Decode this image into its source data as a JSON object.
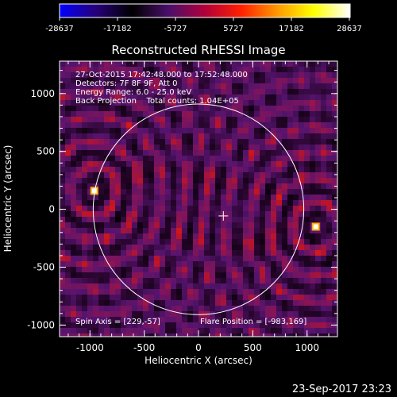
{
  "colorbar": {
    "ticks": [
      "-28637",
      "-17182",
      "-5727",
      "5727",
      "17182",
      "28637"
    ],
    "colormap": [
      "#0000ff",
      "#26007a",
      "#000000",
      "#4a0f6a",
      "#b0003a",
      "#ff2000",
      "#ff9900",
      "#ffff00",
      "#ffffff"
    ]
  },
  "title": "Reconstructed RHESSI Image",
  "info_lines": [
    "27-Oct-2015 17:42:48.000 to 17:52:48.000",
    "Detectors: 7F 8F 9F, Att 0",
    "Energy Range: 6.0 - 25.0 keV",
    "Back Projection    Total counts: 1.04E+05"
  ],
  "spin_axis": "Spin Axis = [229,-57]",
  "flare_position": "Flare Position = [-983,169]",
  "timestamp": "23-Sep-2017 23:23",
  "chart_data": {
    "type": "heatmap",
    "title": "Reconstructed RHESSI Image",
    "xlabel": "Heliocentric X (arcsec)",
    "ylabel": "Heliocentric Y (arcsec)",
    "xlim": [
      -1280,
      1280
    ],
    "ylim": [
      -1100,
      1280
    ],
    "xticks": [
      -1000,
      -500,
      0,
      500,
      1000
    ],
    "yticks": [
      -1000,
      -500,
      0,
      500,
      1000
    ],
    "color_range": [
      -28637,
      28637
    ],
    "solar_limb": {
      "center": [
        0,
        0
      ],
      "radius_arcsec": 970
    },
    "spin_axis": [
      229,
      -57
    ],
    "flare_position": [
      -983,
      169
    ],
    "sources": [
      {
        "x": -960,
        "y": 160
      },
      {
        "x": 1080,
        "y": -150
      }
    ]
  }
}
